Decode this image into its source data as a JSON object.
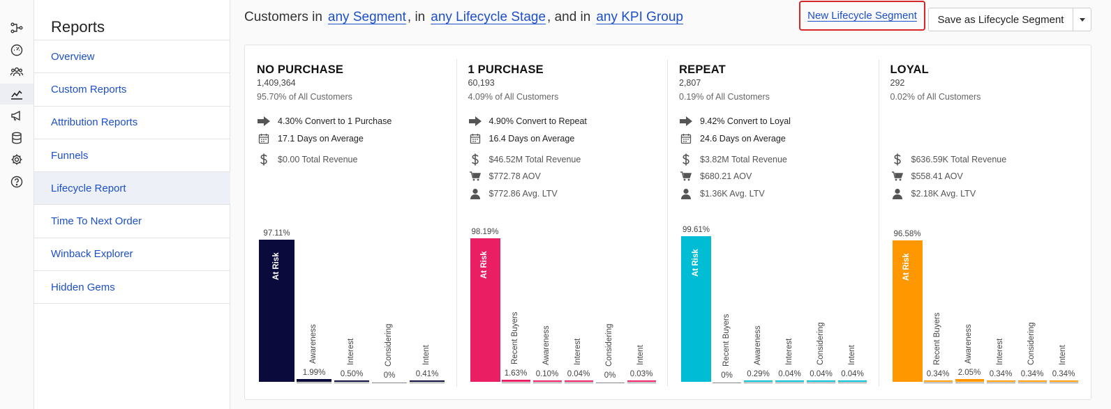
{
  "iconbar": {
    "icons": [
      "flow-icon",
      "dashboard-icon",
      "users-icon",
      "chart-icon",
      "megaphone-icon",
      "database-icon",
      "gear-icon",
      "help-icon"
    ],
    "active_index": 3
  },
  "sidebar": {
    "title": "Reports",
    "items": [
      {
        "label": "Overview"
      },
      {
        "label": "Custom Reports"
      },
      {
        "label": "Attribution Reports"
      },
      {
        "label": "Funnels"
      },
      {
        "label": "Lifecycle Report"
      },
      {
        "label": "Time To Next Order"
      },
      {
        "label": "Winback Explorer"
      },
      {
        "label": "Hidden Gems"
      }
    ],
    "active_index": 4
  },
  "filter": {
    "prefix": "Customers in",
    "segment": "any Segment",
    "sep1": ", in",
    "stage": "any Lifecycle Stage",
    "sep2": ", and in",
    "kpi": "any KPI Group"
  },
  "actions": {
    "new_segment": "New Lifecycle Segment",
    "save_segment": "Save as Lifecycle Segment"
  },
  "colors": {
    "no_purchase": "#0a0a3c",
    "one_purchase": "#e91e63",
    "repeat": "#00bcd4",
    "loyal": "#ff9800",
    "link": "#1c4fc9",
    "highlight_border": "#d6262a"
  },
  "columns": [
    {
      "title": "NO PURCHASE",
      "count": "1,409,364",
      "share": "95.70% of All Customers",
      "convert": "4.30% Convert to 1 Purchase",
      "days": "17.1 Days on Average",
      "revenue": "$0.00 Total Revenue",
      "aov": "",
      "ltv": "",
      "color": "#0a0a3c",
      "bars": [
        {
          "label": "At Risk",
          "value": 97.11,
          "text": "97.11%"
        },
        {
          "label": "Awareness",
          "value": 1.99,
          "text": "1.99%"
        },
        {
          "label": "Interest",
          "value": 0.5,
          "text": "0.50%"
        },
        {
          "label": "Considering",
          "value": 0,
          "text": "0%"
        },
        {
          "label": "Intent",
          "value": 0.41,
          "text": "0.41%"
        }
      ]
    },
    {
      "title": "1 PURCHASE",
      "count": "60,193",
      "share": "4.09% of All Customers",
      "convert": "4.90% Convert to Repeat",
      "days": "16.4 Days on Average",
      "revenue": "$46.52M Total Revenue",
      "aov": "$772.78 AOV",
      "ltv": "$772.86 Avg. LTV",
      "color": "#e91e63",
      "bars": [
        {
          "label": "At Risk",
          "value": 98.19,
          "text": "98.19%"
        },
        {
          "label": "Recent Buyers",
          "value": 1.63,
          "text": "1.63%"
        },
        {
          "label": "Awareness",
          "value": 0.1,
          "text": "0.10%"
        },
        {
          "label": "Interest",
          "value": 0.04,
          "text": "0.04%"
        },
        {
          "label": "Considering",
          "value": 0,
          "text": "0%"
        },
        {
          "label": "Intent",
          "value": 0.03,
          "text": "0.03%"
        }
      ]
    },
    {
      "title": "REPEAT",
      "count": "2,807",
      "share": "0.19% of All Customers",
      "convert": "9.42% Convert to Loyal",
      "days": "24.6 Days on Average",
      "revenue": "$3.82M Total Revenue",
      "aov": "$680.21 AOV",
      "ltv": "$1.36K Avg. LTV",
      "color": "#00bcd4",
      "bars": [
        {
          "label": "At Risk",
          "value": 99.61,
          "text": "99.61%"
        },
        {
          "label": "Recent Buyers",
          "value": 0,
          "text": "0%"
        },
        {
          "label": "Awareness",
          "value": 0.29,
          "text": "0.29%"
        },
        {
          "label": "Interest",
          "value": 0.04,
          "text": "0.04%"
        },
        {
          "label": "Considering",
          "value": 0.04,
          "text": "0.04%"
        },
        {
          "label": "Intent",
          "value": 0.04,
          "text": "0.04%"
        }
      ]
    },
    {
      "title": "LOYAL",
      "count": "292",
      "share": "0.02% of All Customers",
      "convert": "",
      "days": "",
      "revenue": "$636.59K Total Revenue",
      "aov": "$558.41 AOV",
      "ltv": "$2.18K Avg. LTV",
      "color": "#ff9800",
      "bars": [
        {
          "label": "At Risk",
          "value": 96.58,
          "text": "96.58%"
        },
        {
          "label": "Recent Buyers",
          "value": 0.34,
          "text": "0.34%"
        },
        {
          "label": "Awareness",
          "value": 2.05,
          "text": "2.05%"
        },
        {
          "label": "Interest",
          "value": 0.34,
          "text": "0.34%"
        },
        {
          "label": "Considering",
          "value": 0.34,
          "text": "0.34%"
        },
        {
          "label": "Intent",
          "value": 0.34,
          "text": "0.34%"
        }
      ]
    }
  ],
  "chart_data": [
    {
      "type": "bar",
      "title": "NO PURCHASE",
      "categories": [
        "At Risk",
        "Awareness",
        "Interest",
        "Considering",
        "Intent"
      ],
      "values": [
        97.11,
        1.99,
        0.5,
        0,
        0.41
      ],
      "ylim": [
        0,
        100
      ]
    },
    {
      "type": "bar",
      "title": "1 PURCHASE",
      "categories": [
        "At Risk",
        "Recent Buyers",
        "Awareness",
        "Interest",
        "Considering",
        "Intent"
      ],
      "values": [
        98.19,
        1.63,
        0.1,
        0.04,
        0,
        0.03
      ],
      "ylim": [
        0,
        100
      ]
    },
    {
      "type": "bar",
      "title": "REPEAT",
      "categories": [
        "At Risk",
        "Recent Buyers",
        "Awareness",
        "Interest",
        "Considering",
        "Intent"
      ],
      "values": [
        99.61,
        0,
        0.29,
        0.04,
        0.04,
        0.04
      ],
      "ylim": [
        0,
        100
      ]
    },
    {
      "type": "bar",
      "title": "LOYAL",
      "categories": [
        "At Risk",
        "Recent Buyers",
        "Awareness",
        "Interest",
        "Considering",
        "Intent"
      ],
      "values": [
        96.58,
        0.34,
        2.05,
        0.34,
        0.34,
        0.34
      ],
      "ylim": [
        0,
        100
      ]
    }
  ]
}
